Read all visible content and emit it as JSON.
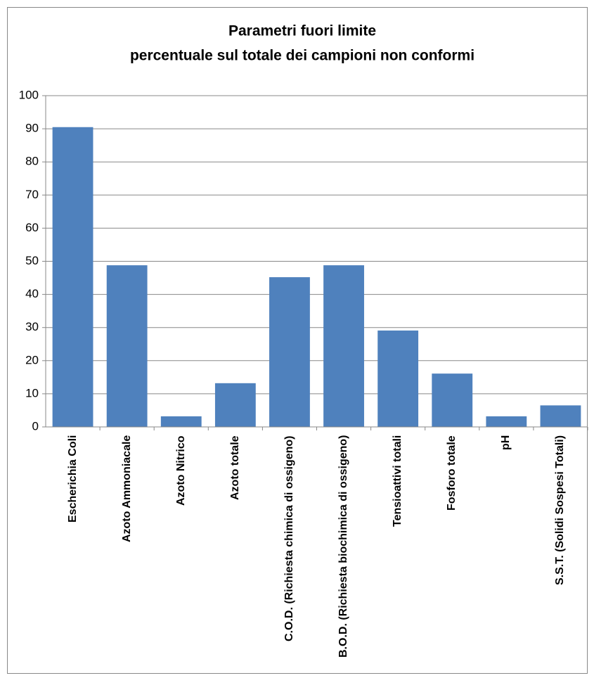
{
  "chart_data": {
    "type": "bar",
    "title": [
      "Parametri fuori limite",
      "percentuale sul totale dei campioni non conformi"
    ],
    "categories": [
      "Escherichia Coli",
      "Azoto Ammoniacale",
      "Azoto Nitrico",
      "Azoto totale",
      "C.O.D. (Richiesta chimica di ossigeno)",
      "B.O.D. (Richiesta biochimica di ossigeno)",
      "Tensioattivi totali",
      "Fosforo totale",
      "pH",
      "S.S.T. (Solidi Sospesi Totali)"
    ],
    "values": [
      90.5,
      48.8,
      3.2,
      13.2,
      45.2,
      48.8,
      29.1,
      16.1,
      3.2,
      6.5
    ],
    "color": "#4f81bd",
    "ylim": [
      0,
      100
    ],
    "yticks": [
      0,
      10,
      20,
      30,
      40,
      50,
      60,
      70,
      80,
      90,
      100
    ],
    "grid": true
  }
}
